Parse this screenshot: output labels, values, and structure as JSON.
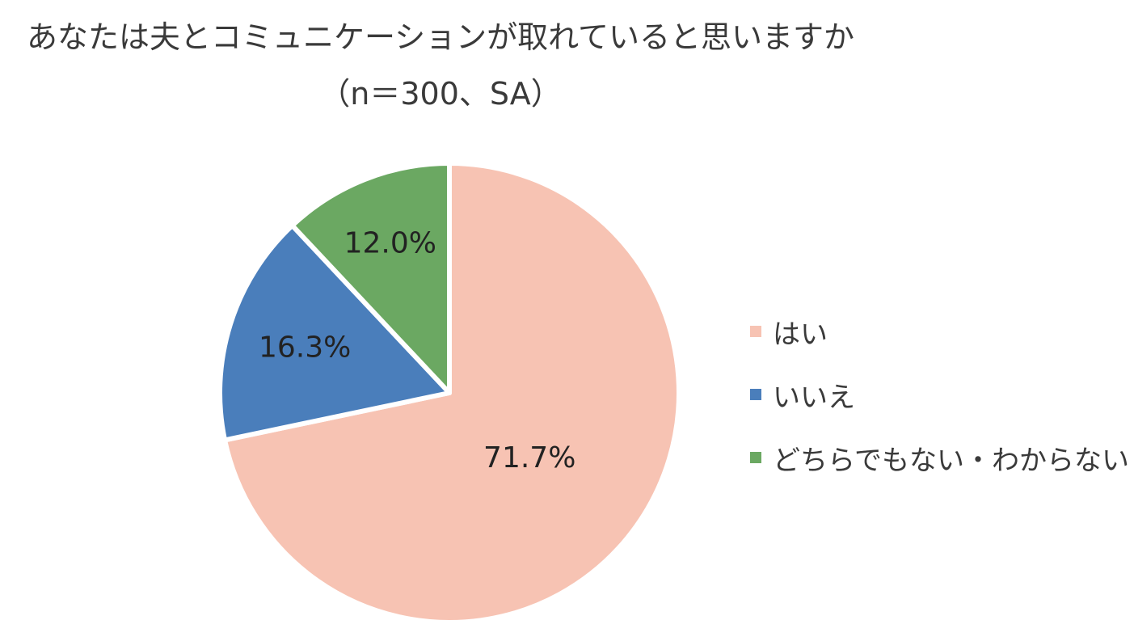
{
  "chart_data": {
    "type": "pie",
    "title": "あなたは夫とコミュニケーションが取れていると思いますか",
    "subtitle": "（n＝300、SA）",
    "categories": [
      "はい",
      "いいえ",
      "どちらでもない・わからない"
    ],
    "values": [
      71.7,
      16.3,
      12.0
    ],
    "labels": [
      "71.7%",
      "16.3%",
      "12.0%"
    ],
    "colors": [
      "#F7C3B3",
      "#4A7EBB",
      "#6BA862"
    ],
    "start": "12 o'clock, clockwise",
    "legend_position": "right"
  }
}
